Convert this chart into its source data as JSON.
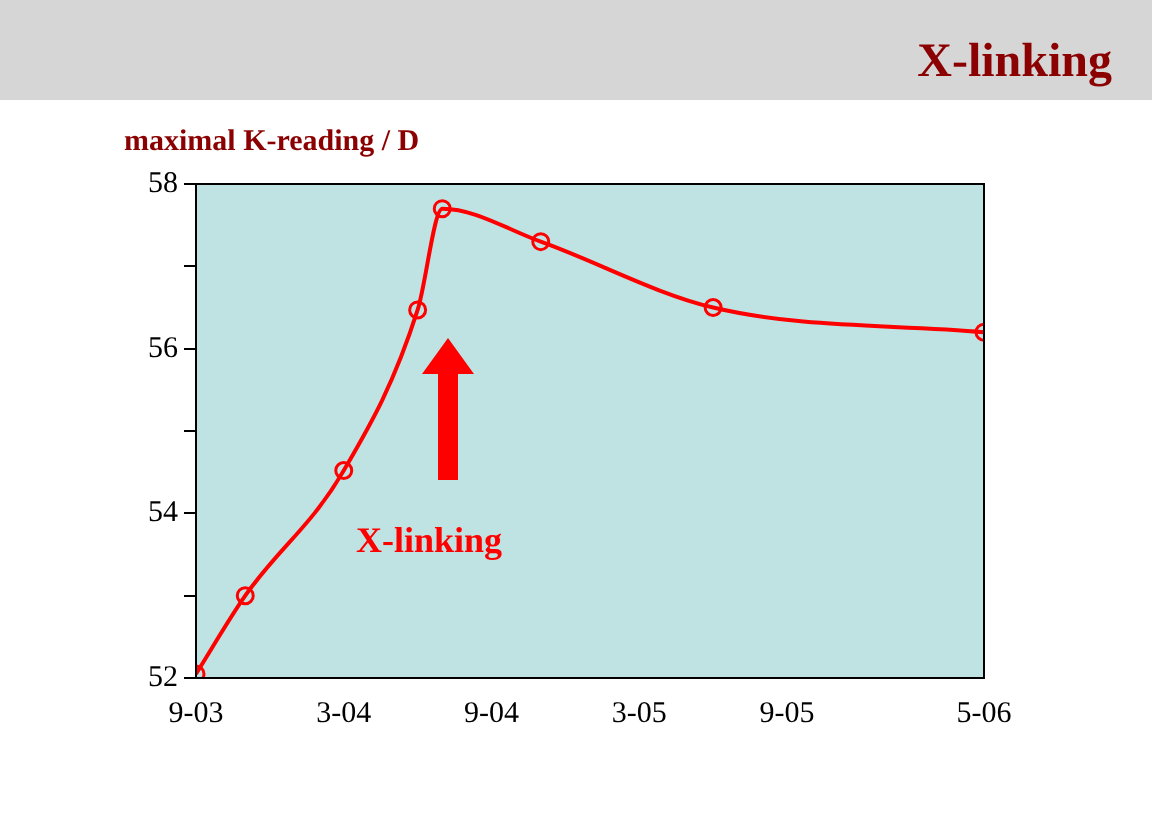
{
  "chart_data": {
    "type": "line",
    "title": "X-linking",
    "ylabel": "maximal K-reading / D",
    "annotations": [
      "X-linking"
    ],
    "x": [
      "2003-09",
      "2003-11",
      "2004-03",
      "2004-06",
      "2004-07",
      "2004-11",
      "2005-06",
      "2006-05"
    ],
    "series": [
      {
        "color": "#ff0000",
        "values": [
          52.05,
          53.0,
          54.52,
          56.47,
          57.7,
          57.3,
          56.5,
          56.2
        ]
      }
    ],
    "xlim": [
      "2003-09",
      "2006-05"
    ],
    "xticks": [
      {
        "value": "2003-09",
        "label": "9-03"
      },
      {
        "value": "2004-03",
        "label": "3-04"
      },
      {
        "value": "2004-09",
        "label": "9-04"
      },
      {
        "value": "2005-03",
        "label": "3-05"
      },
      {
        "value": "2005-09",
        "label": "9-05"
      },
      {
        "value": "2006-05",
        "label": "5-06"
      }
    ],
    "ylim": [
      52,
      58
    ],
    "yticks": [
      52,
      {
        "value": 53,
        "label": null
      },
      54,
      {
        "value": 55,
        "label": null
      },
      56,
      {
        "value": 57,
        "label": null
      },
      58
    ],
    "grid": false,
    "legend": false,
    "marker": "circle",
    "line_style": "solid"
  }
}
